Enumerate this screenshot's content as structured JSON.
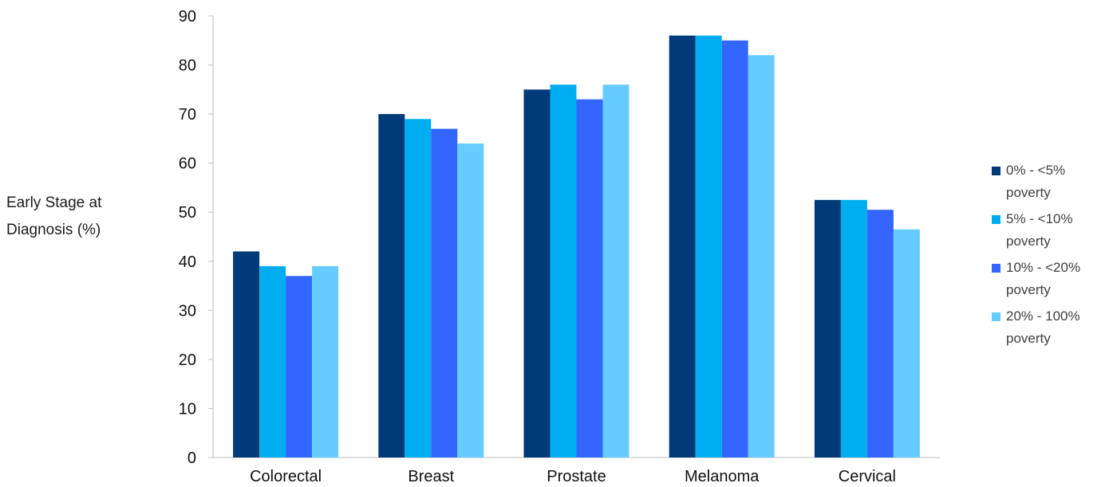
{
  "chart_data": {
    "type": "bar",
    "categories": [
      "Colorectal",
      "Breast",
      "Prostate",
      "Melanoma",
      "Cervical"
    ],
    "series": [
      {
        "name": "0% - <5% poverty",
        "color": "#003a78",
        "values": [
          42,
          70,
          75,
          86,
          52.5
        ]
      },
      {
        "name": "5% - <10% poverty",
        "color": "#00aeef",
        "values": [
          39,
          69,
          76,
          86,
          52.5
        ]
      },
      {
        "name": "10% - <20% poverty",
        "color": "#3366ff",
        "values": [
          37,
          67,
          73,
          85,
          50.5
        ]
      },
      {
        "name": "20% - 100% poverty",
        "color": "#66ccff",
        "values": [
          39,
          64,
          76,
          82,
          46.5
        ]
      }
    ],
    "ylabel": "Early Stage at Diagnosis (%)",
    "ylabel_lines": [
      "Early Stage at",
      "Diagnosis (%)"
    ],
    "ylim": [
      0,
      90
    ],
    "yticks": [
      0,
      10,
      20,
      30,
      40,
      50,
      60,
      70,
      80,
      90
    ],
    "grid": false,
    "legend_position": "right"
  },
  "legend": {
    "items": [
      {
        "label": "0% - <5% poverty",
        "color": "#003a78"
      },
      {
        "label": "5% - <10% poverty",
        "color": "#00aeef"
      },
      {
        "label": "10% - <20% poverty",
        "color": "#3366ff"
      },
      {
        "label": "20% - 100% poverty",
        "color": "#66ccff"
      }
    ]
  }
}
